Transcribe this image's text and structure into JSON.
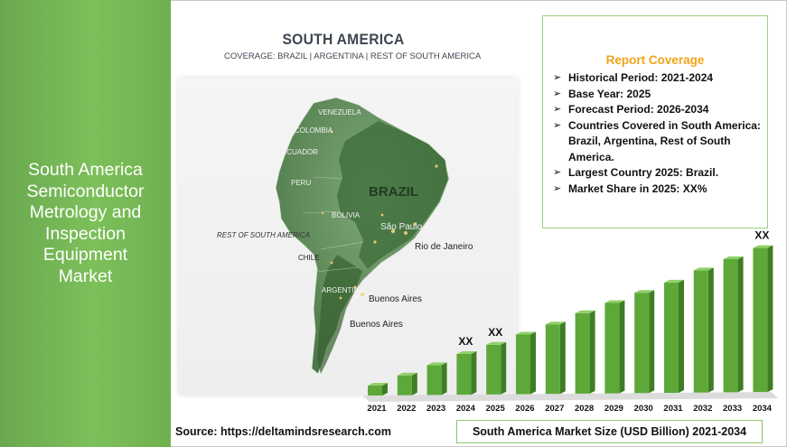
{
  "left_panel": {
    "title_lines": [
      "South America",
      "Semiconductor",
      "Metrology and",
      "Inspection",
      "Equipment",
      "Market"
    ]
  },
  "map": {
    "title": "SOUTH AMERICA",
    "subtitle": "COVERAGE: BRAZIL | ARGENTINA | REST OF SOUTH AMERICA",
    "labels": {
      "venezuela": "VENEZUELA",
      "colombia": "COLOMBIA",
      "ecuador": "ECUADOR",
      "peru": "PERU",
      "brazil": "BRAZIL",
      "bolivia": "BOLIVIA",
      "rest_of_south_america": "REST OF SOUTH AMERICA",
      "sao_paulo": "São Paulo",
      "rio_de_janeiro": "Rio de Janeiro",
      "chile": "CHILE",
      "argentina": "ARGENTINA",
      "buenos_aires_1": "Buenos Aires",
      "buenos_aires_2": "Buenos Aires"
    },
    "colors": {
      "land_dark": "#4e7a4a",
      "land_mid": "#6b9465",
      "land_light": "#8fb287",
      "highlight": "#3c6b3a"
    }
  },
  "coverage": {
    "title": "Report Coverage",
    "items": [
      "Historical Period: 2021-2024",
      "Base Year: 2025",
      "Forecast Period: 2026-2034",
      "Countries Covered in South America: Brazil, Argentina, Rest of South America.",
      "Largest Country 2025: Brazil.",
      "Market Share in 2025: XX%"
    ],
    "bullet_icon": "arrow-bullet-icon",
    "title_color": "#f0a418",
    "border_color": "#9bd37f"
  },
  "chart_data": {
    "type": "bar",
    "title": "South America Market Size (USD Billion) 2021-2034",
    "categories": [
      "2021",
      "2022",
      "2023",
      "2024",
      "2025",
      "2026",
      "2027",
      "2028",
      "2029",
      "2030",
      "2031",
      "2032",
      "2033",
      "2034"
    ],
    "values": [
      1.0,
      2.0,
      3.0,
      4.1,
      5.0,
      6.0,
      7.0,
      8.1,
      9.1,
      10.1,
      11.1,
      12.3,
      13.4,
      14.5
    ],
    "value_labels": {
      "2024": "XX",
      "2025": "XX",
      "2034": "XX"
    },
    "ylim": [
      0,
      15
    ],
    "grid": false,
    "bar_color": "#5ea83a",
    "bar_top_color": "#8fd068"
  },
  "footer": {
    "source": "Source: https://deltamindsresearch.com",
    "caption": "South America Market Size (USD Billion) 2021-2034"
  }
}
